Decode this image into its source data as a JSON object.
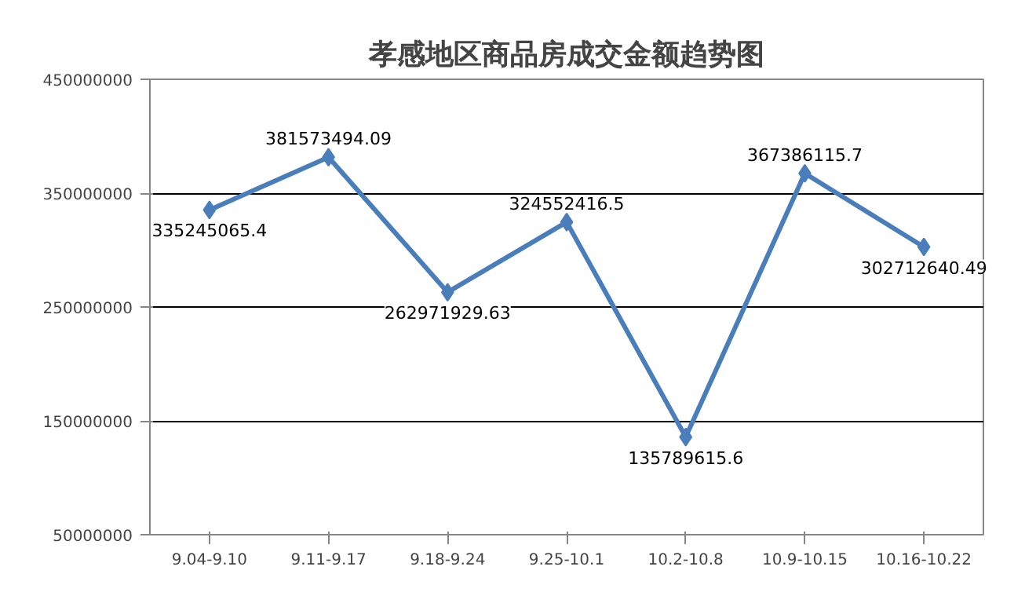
{
  "chart_data": {
    "type": "line",
    "title": "孝感地区商品房成交金额趋势图",
    "categories": [
      "9.04-9.10",
      "9.11-9.17",
      "9.18-9.24",
      "9.25-10.1",
      "10.2-10.8",
      "10.9-10.15",
      "10.16-10.22"
    ],
    "series": [
      {
        "color": "#4a7ebb",
        "values": [
          335245065.4,
          381573494.09,
          262971929.63,
          324552416.5,
          135789615.6,
          367386115.7,
          302712640.49
        ]
      }
    ],
    "ylim": [
      50000000,
      450000000
    ],
    "yticks": [
      50000000,
      150000000,
      250000000,
      350000000,
      450000000
    ],
    "grid": "y",
    "marker": "diamond",
    "line_style": "solid",
    "data_labels": true
  }
}
